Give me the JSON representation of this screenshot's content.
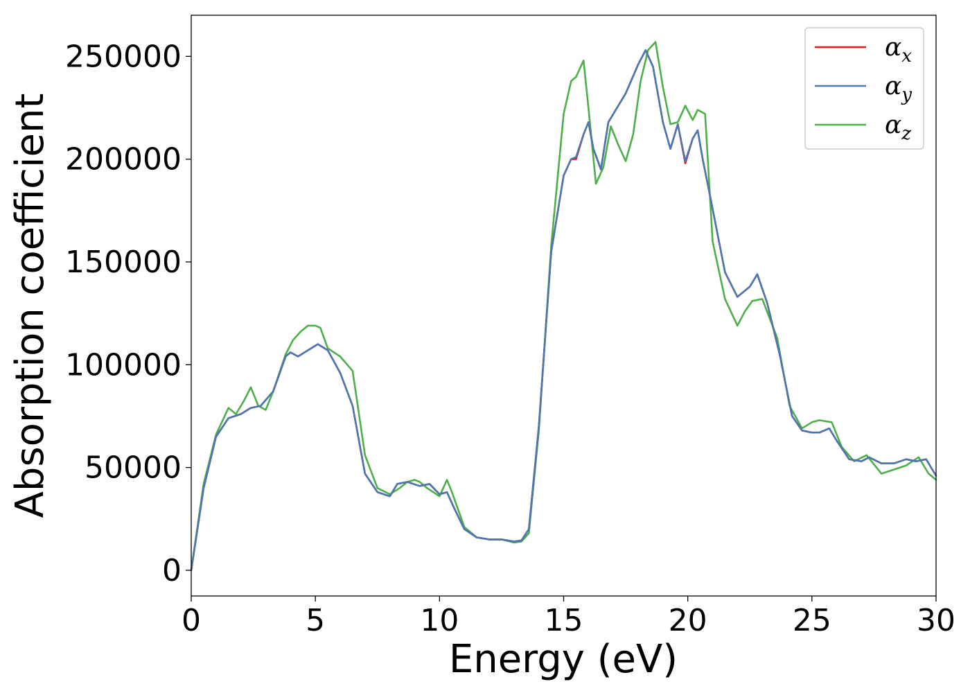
{
  "chart_data": {
    "type": "line",
    "xlabel": "Energy (eV)",
    "ylabel": "Absorption coefficient",
    "xlim": [
      0,
      30
    ],
    "ylim": [
      -12500,
      270000
    ],
    "xticks": [
      0,
      5,
      10,
      15,
      20,
      25,
      30
    ],
    "xtick_labels": [
      "0",
      "5",
      "10",
      "15",
      "20",
      "25",
      "30"
    ],
    "yticks": [
      0,
      50000,
      100000,
      150000,
      200000,
      250000
    ],
    "ytick_labels": [
      "0",
      "50000",
      "100000",
      "150000",
      "200000",
      "250000"
    ],
    "grid": false,
    "legend_position": "top-right",
    "series": [
      {
        "name": "α",
        "subscript": "x",
        "color": "#e41a1c",
        "x": [
          0,
          0.5,
          1.0,
          1.5,
          2.0,
          2.4,
          2.8,
          3.3,
          3.8,
          4.0,
          4.3,
          4.7,
          5.1,
          5.5,
          6.0,
          6.5,
          7.0,
          7.5,
          8.0,
          8.3,
          8.7,
          9.2,
          9.6,
          10.0,
          10.3,
          10.6,
          11.0,
          11.5,
          12.0,
          12.5,
          13.0,
          13.3,
          13.6,
          14.0,
          14.5,
          15.0,
          15.3,
          15.5,
          15.8,
          16.0,
          16.2,
          16.5,
          16.8,
          17.0,
          17.5,
          18.0,
          18.3,
          18.6,
          19.0,
          19.3,
          19.6,
          19.9,
          20.2,
          20.4,
          20.6,
          20.9,
          21.5,
          22.0,
          22.5,
          22.8,
          23.2,
          23.7,
          24.2,
          24.6,
          25.0,
          25.3,
          25.7,
          26.0,
          26.5,
          27.0,
          27.3,
          27.8,
          28.3,
          28.8,
          29.2,
          29.6,
          30.0
        ],
        "y": [
          0,
          40000,
          65000,
          74000,
          76000,
          79000,
          80000,
          87000,
          104000,
          106000,
          104000,
          107000,
          110000,
          107000,
          96000,
          80000,
          47000,
          38000,
          36000,
          42000,
          43000,
          41000,
          42000,
          37000,
          38000,
          30000,
          20000,
          16000,
          15000,
          15000,
          14000,
          14500,
          20000,
          70000,
          155000,
          192000,
          200000,
          200000,
          212000,
          218000,
          205000,
          195000,
          218000,
          222000,
          232000,
          246000,
          253000,
          245000,
          218000,
          205000,
          217000,
          198000,
          210000,
          214000,
          200000,
          182000,
          145000,
          133000,
          138000,
          144000,
          130000,
          105000,
          75000,
          68000,
          67000,
          67000,
          69000,
          63000,
          54000,
          53000,
          55000,
          52000,
          52000,
          54000,
          53000,
          54000,
          46000
        ]
      },
      {
        "name": "α",
        "subscript": "y",
        "color": "#4a78b0",
        "x": [
          0,
          0.5,
          1.0,
          1.5,
          2.0,
          2.4,
          2.8,
          3.3,
          3.8,
          4.0,
          4.3,
          4.7,
          5.1,
          5.5,
          6.0,
          6.5,
          7.0,
          7.5,
          8.0,
          8.3,
          8.7,
          9.2,
          9.6,
          10.0,
          10.3,
          10.6,
          11.0,
          11.5,
          12.0,
          12.5,
          13.0,
          13.3,
          13.6,
          14.0,
          14.5,
          15.0,
          15.3,
          15.5,
          15.8,
          16.0,
          16.2,
          16.5,
          16.8,
          17.0,
          17.5,
          18.0,
          18.3,
          18.6,
          19.0,
          19.3,
          19.6,
          19.9,
          20.2,
          20.4,
          20.6,
          20.9,
          21.5,
          22.0,
          22.5,
          22.8,
          23.2,
          23.7,
          24.2,
          24.6,
          25.0,
          25.3,
          25.7,
          26.0,
          26.5,
          27.0,
          27.3,
          27.8,
          28.3,
          28.8,
          29.2,
          29.6,
          30.0
        ],
        "y": [
          0,
          40000,
          65000,
          74000,
          76000,
          79000,
          80000,
          87000,
          104000,
          106000,
          104000,
          107000,
          110000,
          107000,
          96000,
          80000,
          47000,
          38000,
          36000,
          42000,
          43000,
          41000,
          42000,
          37000,
          38000,
          30000,
          20000,
          16000,
          15000,
          15000,
          14000,
          14500,
          20000,
          70000,
          155000,
          192000,
          200000,
          201000,
          212000,
          218000,
          205000,
          195000,
          218000,
          222000,
          232000,
          246000,
          253000,
          245000,
          218000,
          205000,
          217000,
          199000,
          210000,
          214000,
          200000,
          182000,
          145000,
          133000,
          138000,
          144000,
          130000,
          105000,
          75000,
          68000,
          67000,
          67000,
          69000,
          63000,
          54000,
          53000,
          55000,
          52000,
          52000,
          54000,
          53000,
          54000,
          46000
        ]
      },
      {
        "name": "α",
        "subscript": "z",
        "color": "#4daf4a",
        "x": [
          0,
          0.5,
          1.0,
          1.5,
          1.8,
          2.1,
          2.4,
          2.7,
          3.0,
          3.3,
          3.8,
          4.1,
          4.4,
          4.7,
          5.0,
          5.2,
          5.5,
          6.0,
          6.5,
          7.0,
          7.5,
          8.0,
          8.4,
          8.7,
          9.0,
          9.2,
          9.5,
          10.0,
          10.3,
          10.5,
          11.0,
          11.5,
          12.0,
          12.5,
          13.0,
          13.3,
          13.6,
          14.0,
          14.5,
          15.0,
          15.3,
          15.5,
          15.8,
          16.0,
          16.3,
          16.6,
          16.9,
          17.2,
          17.5,
          17.8,
          18.1,
          18.4,
          18.7,
          19.0,
          19.3,
          19.6,
          19.9,
          20.2,
          20.4,
          20.7,
          21.0,
          21.5,
          22.0,
          22.3,
          22.6,
          23.0,
          23.6,
          24.1,
          24.6,
          25.0,
          25.3,
          25.8,
          26.2,
          26.7,
          27.2,
          27.8,
          28.3,
          28.8,
          29.3,
          29.7,
          30.0
        ],
        "y": [
          0,
          42000,
          66000,
          79000,
          76000,
          82000,
          89000,
          80000,
          78000,
          87000,
          105000,
          112000,
          116000,
          119000,
          119000,
          118000,
          108000,
          104000,
          97000,
          56000,
          40000,
          37000,
          40000,
          43000,
          44000,
          43000,
          40000,
          36000,
          44000,
          38000,
          21000,
          16000,
          15000,
          15000,
          13500,
          14000,
          18000,
          68000,
          158000,
          222000,
          238000,
          240000,
          248000,
          225000,
          188000,
          196000,
          216000,
          207000,
          199000,
          212000,
          238000,
          253000,
          257000,
          235000,
          217000,
          218000,
          226000,
          219000,
          224000,
          222000,
          160000,
          132000,
          119000,
          126000,
          131000,
          132000,
          113000,
          80000,
          69000,
          72000,
          73000,
          72000,
          60000,
          53000,
          56000,
          47000,
          49000,
          51000,
          55000,
          47000,
          44000
        ]
      }
    ]
  }
}
